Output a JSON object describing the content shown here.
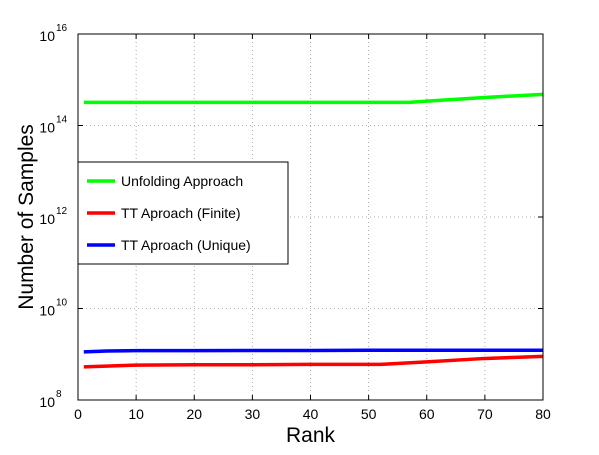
{
  "chart_data": {
    "type": "line",
    "title": "",
    "xlabel": "Rank",
    "ylabel": "Number of Samples",
    "xlim": [
      0,
      80
    ],
    "ylim": [
      100000000,
      10000000000000000
    ],
    "y_scale": "log",
    "grid": true,
    "legend_position": "center-left",
    "x_ticks": [
      "0",
      "10",
      "20",
      "30",
      "40",
      "50",
      "60",
      "70",
      "80"
    ],
    "y_ticks": [
      {
        "base": "10",
        "exp": "8"
      },
      {
        "base": "10",
        "exp": "10"
      },
      {
        "base": "10",
        "exp": "12"
      },
      {
        "base": "10",
        "exp": "14"
      },
      {
        "base": "10",
        "exp": "16"
      }
    ],
    "series": [
      {
        "name": "Unfolding Approach",
        "color": "#00ff00",
        "x": [
          1,
          10,
          20,
          30,
          40,
          50,
          57,
          60,
          70,
          80
        ],
        "y": [
          320000000000000,
          320000000000000,
          320000000000000,
          320000000000000,
          320000000000000,
          320000000000000,
          320000000000000,
          340000000000000,
          410000000000000,
          480000000000000
        ]
      },
      {
        "name": "TT Aproach (Finite)",
        "color": "#ff0000",
        "x": [
          1,
          10,
          20,
          30,
          40,
          52,
          60,
          70,
          80
        ],
        "y": [
          530000000,
          580000000,
          590000000,
          590000000,
          600000000,
          600000000,
          680000000,
          810000000,
          900000000
        ]
      },
      {
        "name": "TT Aproach (Unique)",
        "color": "#0000ff",
        "x": [
          1,
          5,
          10,
          20,
          30,
          40,
          50,
          60,
          70,
          80
        ],
        "y": [
          1130000000,
          1180000000,
          1200000000,
          1200000000,
          1210000000,
          1210000000,
          1220000000,
          1220000000,
          1220000000,
          1220000000
        ]
      }
    ]
  }
}
